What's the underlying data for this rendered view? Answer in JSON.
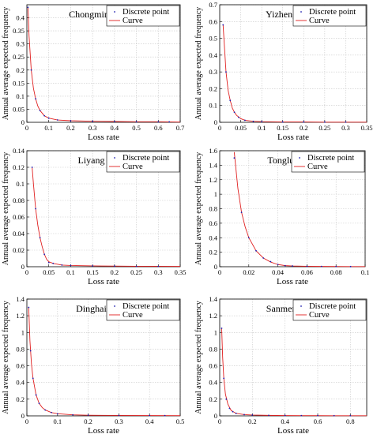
{
  "chart_data": [
    {
      "type": "line",
      "title": "Chongming",
      "xlabel": "Loss rate",
      "ylabel": "Annual average expected frequency",
      "xlim": [
        0,
        0.7
      ],
      "ylim": [
        0,
        0.45
      ],
      "xticks": [
        0,
        0.1,
        0.2,
        0.3,
        0.4,
        0.5,
        0.6,
        0.7
      ],
      "yticks": [
        0,
        0.05,
        0.1,
        0.15,
        0.2,
        0.25,
        0.3,
        0.35,
        0.4
      ],
      "xtick_labels": [
        "0",
        "0.1",
        "0.2",
        "0.3",
        "0.4",
        "0.5",
        "0.6",
        "0.7"
      ],
      "ytick_labels": [
        "0",
        "0.05",
        "0.1",
        "0.15",
        "0.2",
        "0.25",
        "0.3",
        "0.35",
        "0.4"
      ],
      "grid": true,
      "legend": "top-right",
      "series": [
        {
          "name": "Discrete point",
          "kind": "points",
          "color": "#1f1fb0",
          "x": [
            0.005,
            0.02,
            0.04,
            0.06,
            0.08,
            0.1,
            0.14,
            0.2,
            0.3,
            0.4,
            0.5,
            0.6,
            0.65
          ],
          "y": [
            0.44,
            0.2,
            0.09,
            0.045,
            0.025,
            0.016,
            0.009,
            0.006,
            0.004,
            0.003,
            0.002,
            0.002,
            0.002
          ]
        },
        {
          "name": "Curve",
          "kind": "curve",
          "color": "#e02020",
          "x": [
            0.005,
            0.01,
            0.02,
            0.03,
            0.04,
            0.05,
            0.06,
            0.08,
            0.1,
            0.14,
            0.2,
            0.3,
            0.4,
            0.5,
            0.6,
            0.7
          ],
          "y": [
            0.44,
            0.33,
            0.2,
            0.13,
            0.09,
            0.062,
            0.045,
            0.025,
            0.016,
            0.009,
            0.006,
            0.004,
            0.003,
            0.002,
            0.002,
            0.001
          ]
        }
      ]
    },
    {
      "type": "line",
      "title": "Yizheng",
      "xlabel": "Loss rate",
      "ylabel": "Annual average expected frequency",
      "xlim": [
        0,
        0.35
      ],
      "ylim": [
        0,
        0.7
      ],
      "xticks": [
        0,
        0.05,
        0.1,
        0.15,
        0.2,
        0.25,
        0.3,
        0.35
      ],
      "yticks": [
        0,
        0.1,
        0.2,
        0.3,
        0.4,
        0.5,
        0.6,
        0.7
      ],
      "xtick_labels": [
        "0",
        "0.05",
        "0.1",
        "0.15",
        "0.2",
        "0.25",
        "0.3",
        "0.35"
      ],
      "ytick_labels": [
        "0",
        "0.1",
        "0.2",
        "0.3",
        "0.4",
        "0.5",
        "0.6",
        "0.7"
      ],
      "grid": true,
      "legend": "top-right",
      "series": [
        {
          "name": "Discrete point",
          "kind": "points",
          "color": "#1f1fb0",
          "x": [
            0.008,
            0.015,
            0.025,
            0.035,
            0.045,
            0.06,
            0.08,
            0.1,
            0.15,
            0.2,
            0.25,
            0.3
          ],
          "y": [
            0.58,
            0.3,
            0.13,
            0.06,
            0.03,
            0.012,
            0.006,
            0.004,
            0.002,
            0.002,
            0.001,
            0.001
          ]
        },
        {
          "name": "Curve",
          "kind": "curve",
          "color": "#e02020",
          "x": [
            0.008,
            0.01,
            0.015,
            0.02,
            0.025,
            0.03,
            0.035,
            0.04,
            0.05,
            0.06,
            0.08,
            0.1,
            0.15,
            0.2,
            0.25,
            0.3,
            0.35
          ],
          "y": [
            0.58,
            0.5,
            0.3,
            0.19,
            0.13,
            0.085,
            0.06,
            0.042,
            0.022,
            0.012,
            0.006,
            0.004,
            0.002,
            0.002,
            0.001,
            0.001,
            0.001
          ]
        }
      ]
    },
    {
      "type": "line",
      "title": "Liyang",
      "xlabel": "Loss rate",
      "ylabel": "Annual average expected frequency",
      "xlim": [
        0,
        0.35
      ],
      "ylim": [
        0,
        0.14
      ],
      "xticks": [
        0,
        0.05,
        0.1,
        0.15,
        0.2,
        0.25,
        0.3,
        0.35
      ],
      "yticks": [
        0,
        0.02,
        0.04,
        0.06,
        0.08,
        0.1,
        0.12,
        0.14
      ],
      "xtick_labels": [
        "0",
        "0.05",
        "0.1",
        "0.15",
        "0.2",
        "0.25",
        "0.3",
        "0.35"
      ],
      "ytick_labels": [
        "0",
        "0.02",
        "0.04",
        "0.06",
        "0.08",
        "0.1",
        "0.12",
        "0.14"
      ],
      "grid": true,
      "legend": "top-right",
      "series": [
        {
          "name": "Discrete point",
          "kind": "points",
          "color": "#1f1fb0",
          "x": [
            0.012,
            0.02,
            0.03,
            0.04,
            0.05,
            0.06,
            0.08,
            0.1,
            0.15,
            0.2,
            0.25,
            0.3
          ],
          "y": [
            0.12,
            0.07,
            0.035,
            0.015,
            0.005,
            0.004,
            0.002,
            0.0015,
            0.001,
            0.0008,
            0.0005,
            0.0005
          ]
        },
        {
          "name": "Curve",
          "kind": "curve",
          "color": "#e02020",
          "x": [
            0.012,
            0.015,
            0.02,
            0.025,
            0.03,
            0.035,
            0.04,
            0.045,
            0.05,
            0.06,
            0.08,
            0.1,
            0.15,
            0.2,
            0.25,
            0.3,
            0.35
          ],
          "y": [
            0.12,
            0.1,
            0.07,
            0.05,
            0.035,
            0.024,
            0.015,
            0.009,
            0.006,
            0.004,
            0.002,
            0.0015,
            0.001,
            0.0008,
            0.0005,
            0.0005,
            0.0004
          ]
        }
      ]
    },
    {
      "type": "line",
      "title": "Tonglu",
      "xlabel": "Loss rate",
      "ylabel": "Annual average expected frequency",
      "xlim": [
        0,
        0.1
      ],
      "ylim": [
        0,
        1.6
      ],
      "xticks": [
        0,
        0.02,
        0.04,
        0.06,
        0.08,
        0.1
      ],
      "yticks": [
        0,
        0.2,
        0.4,
        0.6,
        0.8,
        1,
        1.2,
        1.4,
        1.6
      ],
      "xtick_labels": [
        "0",
        "0.02",
        "0.04",
        "0.06",
        "0.08",
        "0.1"
      ],
      "ytick_labels": [
        "0",
        "0.2",
        "0.4",
        "0.6",
        "0.8",
        "1",
        "1.2",
        "1.4",
        "1.6"
      ],
      "grid": true,
      "legend": "top-right",
      "series": [
        {
          "name": "Discrete point",
          "kind": "points",
          "color": "#1f1fb0",
          "x": [
            0.01,
            0.015,
            0.02,
            0.025,
            0.03,
            0.035,
            0.04,
            0.045,
            0.05,
            0.06,
            0.07,
            0.08,
            0.09
          ],
          "y": [
            1.5,
            0.75,
            0.4,
            0.22,
            0.12,
            0.07,
            0.03,
            0.015,
            0.01,
            0.006,
            0.004,
            0.003,
            0.002
          ]
        },
        {
          "name": "Curve",
          "kind": "curve",
          "color": "#e02020",
          "x": [
            0.01,
            0.0125,
            0.015,
            0.0175,
            0.02,
            0.025,
            0.03,
            0.035,
            0.04,
            0.045,
            0.05,
            0.06,
            0.07,
            0.08,
            0.09,
            0.1
          ],
          "y": [
            1.58,
            1.08,
            0.75,
            0.55,
            0.4,
            0.22,
            0.12,
            0.065,
            0.03,
            0.015,
            0.01,
            0.006,
            0.004,
            0.003,
            0.002,
            0.002
          ]
        }
      ]
    },
    {
      "type": "line",
      "title": "Dinghai",
      "xlabel": "Loss rate",
      "ylabel": "Annual average expected frequency",
      "xlim": [
        0,
        0.5
      ],
      "ylim": [
        0,
        1.4
      ],
      "xticks": [
        0,
        0.1,
        0.2,
        0.3,
        0.4,
        0.5
      ],
      "yticks": [
        0,
        0.2,
        0.4,
        0.6,
        0.8,
        1,
        1.2,
        1.4
      ],
      "xtick_labels": [
        "0",
        "0.1",
        "0.2",
        "0.3",
        "0.4",
        "0.5"
      ],
      "ytick_labels": [
        "0",
        "0.2",
        "0.4",
        "0.6",
        "0.8",
        "1",
        "1.2",
        "1.4"
      ],
      "grid": true,
      "legend": "top-right",
      "series": [
        {
          "name": "Discrete point",
          "kind": "points",
          "color": "#1f1fb0",
          "x": [
            0.006,
            0.012,
            0.02,
            0.03,
            0.04,
            0.06,
            0.08,
            0.1,
            0.15,
            0.2,
            0.3,
            0.4,
            0.45
          ],
          "y": [
            1.3,
            0.78,
            0.45,
            0.25,
            0.15,
            0.07,
            0.04,
            0.025,
            0.012,
            0.008,
            0.005,
            0.004,
            0.003
          ]
        },
        {
          "name": "Curve",
          "kind": "curve",
          "color": "#e02020",
          "x": [
            0.006,
            0.01,
            0.015,
            0.02,
            0.03,
            0.04,
            0.05,
            0.06,
            0.08,
            0.1,
            0.15,
            0.2,
            0.3,
            0.4,
            0.5
          ],
          "y": [
            1.3,
            0.9,
            0.62,
            0.45,
            0.25,
            0.15,
            0.1,
            0.07,
            0.04,
            0.025,
            0.012,
            0.008,
            0.005,
            0.004,
            0.003
          ]
        }
      ]
    },
    {
      "type": "line",
      "title": "Sanmen",
      "xlabel": "Loss rate",
      "ylabel": "Annual average expected frequency",
      "xlim": [
        0,
        0.9
      ],
      "ylim": [
        0,
        1.4
      ],
      "xticks": [
        0,
        0.2,
        0.4,
        0.6,
        0.8
      ],
      "yticks": [
        0,
        0.2,
        0.4,
        0.6,
        0.8,
        1,
        1.2,
        1.4
      ],
      "xtick_labels": [
        "0",
        "0.2",
        "0.4",
        "0.6",
        "0.8"
      ],
      "ytick_labels": [
        "0",
        "0.2",
        "0.4",
        "0.6",
        "0.8",
        "1",
        "1.2",
        "1.4"
      ],
      "grid": true,
      "legend": "top-right",
      "series": [
        {
          "name": "Discrete point",
          "kind": "points",
          "color": "#1f1fb0",
          "x": [
            0.012,
            0.025,
            0.04,
            0.06,
            0.08,
            0.1,
            0.15,
            0.2,
            0.3,
            0.4,
            0.5,
            0.6,
            0.7,
            0.8
          ],
          "y": [
            1.05,
            0.45,
            0.2,
            0.09,
            0.05,
            0.03,
            0.015,
            0.01,
            0.006,
            0.004,
            0.003,
            0.003,
            0.002,
            0.002
          ]
        },
        {
          "name": "Curve",
          "kind": "curve",
          "color": "#e02020",
          "x": [
            0.012,
            0.018,
            0.025,
            0.035,
            0.05,
            0.07,
            0.1,
            0.15,
            0.2,
            0.3,
            0.4,
            0.5,
            0.6,
            0.7,
            0.8,
            0.9
          ],
          "y": [
            1.05,
            0.7,
            0.45,
            0.26,
            0.14,
            0.065,
            0.03,
            0.015,
            0.01,
            0.006,
            0.004,
            0.003,
            0.003,
            0.002,
            0.002,
            0.002
          ]
        }
      ]
    }
  ]
}
